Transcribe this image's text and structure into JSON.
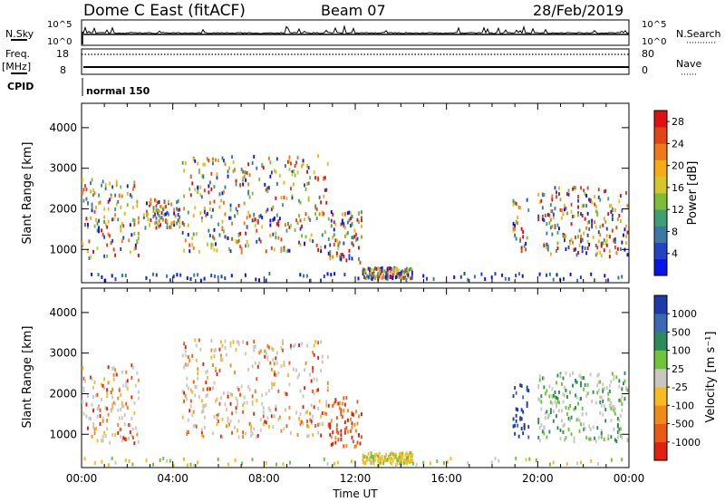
{
  "header": {
    "station": "Dome C East (fitACF)",
    "beam": "Beam 07",
    "date": "28/Feb/2019"
  },
  "strip_labels": {
    "nsky": "N.Sky",
    "nsearch": "N.Search",
    "freq_line1": "Freq.",
    "freq_line2": "[MHz]",
    "nave": "Nave",
    "cpid": "CPID",
    "cpid_value": "normal 150",
    "nsky_ticks": [
      "10^5",
      "10^0"
    ],
    "nsearch_ticks": [
      "10^5",
      "10^0"
    ],
    "freq_ticks": [
      "18",
      "8"
    ],
    "nave_ticks": [
      "80",
      "0"
    ]
  },
  "chart_data": [
    {
      "type": "heatmap",
      "panel": "power",
      "xlabel": "Time UT",
      "ylabel": "Slant Range [km]",
      "x_ticks": [
        "00:00",
        "04:00",
        "08:00",
        "12:00",
        "16:00",
        "20:00",
        "00:00"
      ],
      "xlim_hours": [
        0,
        24
      ],
      "y_ticks": [
        1000,
        2000,
        3000,
        4000
      ],
      "ylim": [
        180,
        4600
      ],
      "colorbar": {
        "label": "Power [dB]",
        "ticks": [
          "4",
          "8",
          "12",
          "16",
          "20",
          "24",
          "28"
        ],
        "range": [
          0,
          30
        ],
        "colors": [
          "#0a14e8",
          "#2342c4",
          "#3c78a4",
          "#409f72",
          "#7dbd3a",
          "#d4c62c",
          "#f5ad14",
          "#f07818",
          "#e04418",
          "#e01010"
        ]
      },
      "echo_regions": [
        {
          "t_start": 0.0,
          "t_end": 2.5,
          "range_low": 750,
          "range_high": 2700
        },
        {
          "t_start": 2.7,
          "t_end": 4.3,
          "range_low": 1500,
          "range_high": 2200
        },
        {
          "t_start": 4.4,
          "t_end": 10.8,
          "range_low": 900,
          "range_high": 3300
        },
        {
          "t_start": 10.8,
          "t_end": 12.3,
          "range_low": 650,
          "range_high": 1900
        },
        {
          "t_start": 12.3,
          "t_end": 14.5,
          "range_low": 250,
          "range_high": 520
        },
        {
          "t_start": 18.9,
          "t_end": 19.6,
          "range_low": 900,
          "range_high": 2200
        },
        {
          "t_start": 20.0,
          "t_end": 23.9,
          "range_low": 800,
          "range_high": 2500
        }
      ]
    },
    {
      "type": "heatmap",
      "panel": "velocity",
      "xlabel": "Time UT",
      "ylabel": "Slant Range [km]",
      "x_ticks": [
        "00:00",
        "04:00",
        "08:00",
        "12:00",
        "16:00",
        "20:00",
        "00:00"
      ],
      "xlim_hours": [
        0,
        24
      ],
      "y_ticks": [
        1000,
        2000,
        3000,
        4000
      ],
      "ylim": [
        180,
        4600
      ],
      "colorbar": {
        "label": "Velocity [m s⁻¹]",
        "ticks": [
          "1000",
          "500",
          "100",
          "25",
          "-25",
          "-100",
          "-500",
          "-1000"
        ],
        "colors": [
          "#1c3aa8",
          "#3a6ab4",
          "#2f8a5a",
          "#6fc43a",
          "#c8c8c0",
          "#f8bc20",
          "#f08a18",
          "#ea5a16",
          "#e02010"
        ]
      },
      "echo_regions": [
        {
          "t_start": 0.0,
          "t_end": 2.5,
          "range_low": 750,
          "range_high": 2700,
          "velocity_class": "mixed gray / orange"
        },
        {
          "t_start": 4.4,
          "t_end": 10.8,
          "range_low": 900,
          "range_high": 3300,
          "velocity_class": "gray and orange (-100 to -500)"
        },
        {
          "t_start": 10.8,
          "t_end": 12.3,
          "range_low": 650,
          "range_high": 1900,
          "velocity_class": "orange"
        },
        {
          "t_start": 12.3,
          "t_end": 14.5,
          "range_low": 250,
          "range_high": 520,
          "velocity_class": "yellow / green"
        },
        {
          "t_start": 18.9,
          "t_end": 19.6,
          "range_low": 900,
          "range_high": 2200,
          "velocity_class": "blue (+500 to +1000)"
        },
        {
          "t_start": 20.0,
          "t_end": 23.9,
          "range_low": 800,
          "range_high": 2500,
          "velocity_class": "green / gray"
        }
      ]
    }
  ]
}
